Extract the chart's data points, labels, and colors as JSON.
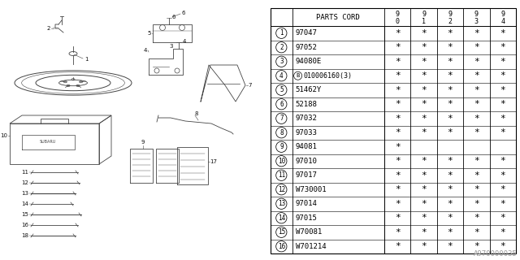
{
  "bg_color": "#ffffff",
  "col_header": "PARTS CORD",
  "year_cols_top": [
    "9",
    "9",
    "9",
    "9",
    "9"
  ],
  "year_cols_bot": [
    "0",
    "1",
    "2",
    "3",
    "4"
  ],
  "rows": [
    {
      "num": "1",
      "code": "97047",
      "stars": [
        1,
        1,
        1,
        1,
        1
      ]
    },
    {
      "num": "2",
      "code": "97052",
      "stars": [
        1,
        1,
        1,
        1,
        1
      ]
    },
    {
      "num": "3",
      "code": "94080E",
      "stars": [
        1,
        1,
        1,
        1,
        1
      ]
    },
    {
      "num": "4",
      "code": "B010006160(3)",
      "stars": [
        1,
        1,
        1,
        1,
        1
      ]
    },
    {
      "num": "5",
      "code": "51462Y",
      "stars": [
        1,
        1,
        1,
        1,
        1
      ]
    },
    {
      "num": "6",
      "code": "52188",
      "stars": [
        1,
        1,
        1,
        1,
        1
      ]
    },
    {
      "num": "7",
      "code": "97032",
      "stars": [
        1,
        1,
        1,
        1,
        1
      ]
    },
    {
      "num": "8",
      "code": "97033",
      "stars": [
        1,
        1,
        1,
        1,
        1
      ]
    },
    {
      "num": "9",
      "code": "94081",
      "stars": [
        1,
        0,
        0,
        0,
        0
      ]
    },
    {
      "num": "10",
      "code": "97010",
      "stars": [
        1,
        1,
        1,
        1,
        1
      ]
    },
    {
      "num": "11",
      "code": "97017",
      "stars": [
        1,
        1,
        1,
        1,
        1
      ]
    },
    {
      "num": "12",
      "code": "W730001",
      "stars": [
        1,
        1,
        1,
        1,
        1
      ]
    },
    {
      "num": "13",
      "code": "97014",
      "stars": [
        1,
        1,
        1,
        1,
        1
      ]
    },
    {
      "num": "14",
      "code": "97015",
      "stars": [
        1,
        1,
        1,
        1,
        1
      ]
    },
    {
      "num": "15",
      "code": "W70081",
      "stars": [
        1,
        1,
        1,
        1,
        1
      ]
    },
    {
      "num": "16",
      "code": "W701214",
      "stars": [
        1,
        1,
        1,
        1,
        1
      ]
    }
  ],
  "watermark": "A970000035",
  "lc": "#444444",
  "tc": "#111111"
}
